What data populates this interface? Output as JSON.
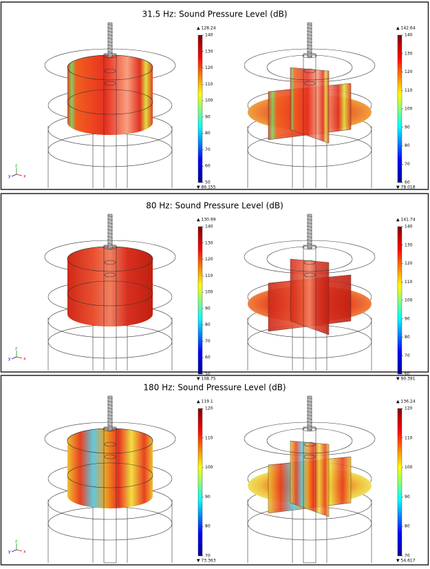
{
  "panels": [
    {
      "title": "31.5 Hz: Sound Pressure Level (dB)",
      "plots": [
        {
          "max": "▲ 128.24",
          "min": "▼ 86.155",
          "ticks": [
            140,
            130,
            120,
            110,
            100,
            90,
            80,
            70,
            60,
            50
          ]
        },
        {
          "max": "▲ 142.64",
          "min": "▼ 78.018",
          "ticks": [
            140,
            130,
            120,
            110,
            100,
            90,
            80,
            70,
            60
          ]
        }
      ]
    },
    {
      "title": "80 Hz: Sound Pressure Level (dB)",
      "plots": [
        {
          "max": "▲ 130.99",
          "min": "▼ 108.75",
          "ticks": [
            140,
            130,
            120,
            110,
            100,
            90,
            80,
            70,
            60,
            50
          ]
        },
        {
          "max": "▲ 141.74",
          "min": "▼ 90.391",
          "ticks": [
            140,
            130,
            120,
            110,
            100,
            90,
            80,
            70,
            60
          ]
        }
      ]
    },
    {
      "title": "180 Hz: Sound Pressure Level (dB)",
      "plots": [
        {
          "max": "▲ 119.1",
          "min": "▼ 73.363",
          "ticks": [
            120,
            110,
            100,
            90,
            80,
            70
          ]
        },
        {
          "max": "▲ 136.24",
          "min": "▼ 54.617",
          "ticks": [
            120,
            110,
            100,
            90,
            80,
            70
          ]
        }
      ]
    }
  ],
  "axes": [
    "y",
    "z",
    "x"
  ]
}
